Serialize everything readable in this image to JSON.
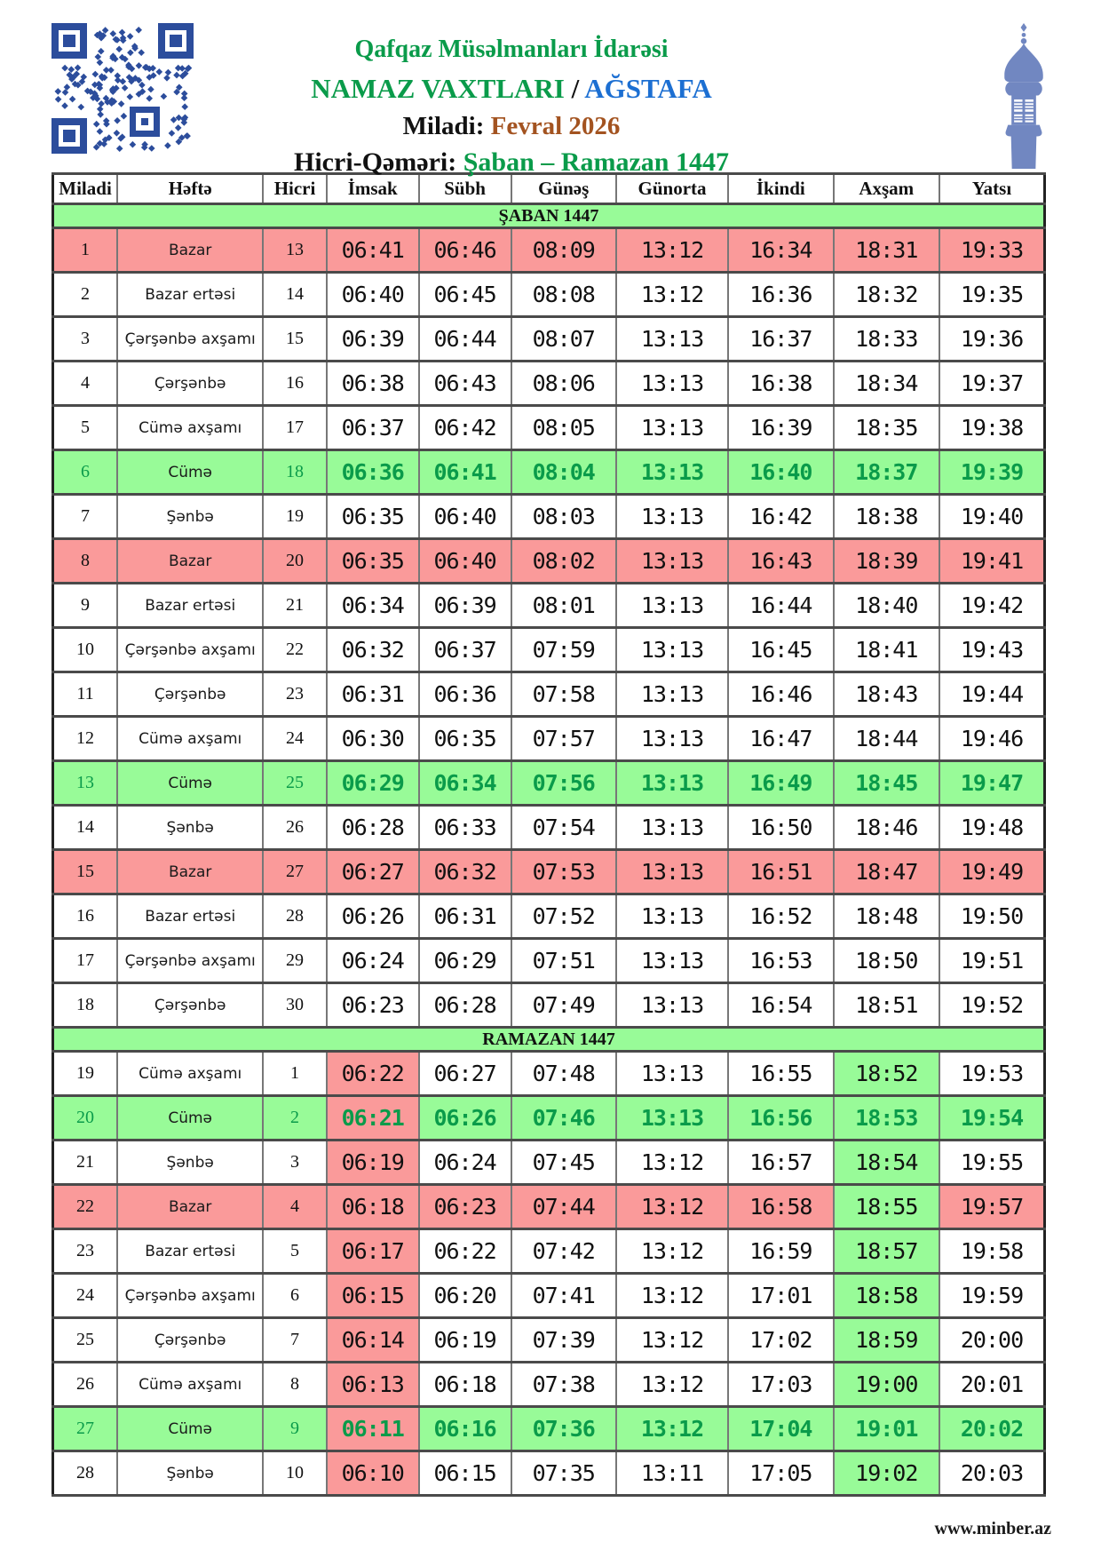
{
  "header": {
    "line1": "Qafqaz Müsəlmanları İdarəsi",
    "line2_part1": "NAMAZ VAXTLARI",
    "line2_sep": " / ",
    "line2_part2": "AĞSTAFA",
    "line3_label": "Miladi: ",
    "line3_value": "Fevral 2026",
    "line4_label": "Hicri-Qəməri: ",
    "line4_value": "Şaban – Ramazan 1447",
    "icons": {
      "left": "qr-code",
      "right": "minaret"
    }
  },
  "colors": {
    "green_text": "#0a9b4a",
    "blue_text": "#1c6fd2",
    "brown_text": "#a35320",
    "row_red": "#fa9a9a",
    "row_green": "#98fb98",
    "qr_blue": "#2c4d9c",
    "minaret_blue": "#7187c1"
  },
  "table": {
    "columns": [
      "Miladi",
      "Həftə",
      "Hicri",
      "İmsak",
      "Sübh",
      "Günəş",
      "Günorta",
      "İkindi",
      "Axşam",
      "Yatsı"
    ],
    "time_keys": [
      "imsak",
      "subh",
      "gunes",
      "gunorta",
      "ikindi",
      "axsam",
      "yatsi"
    ],
    "sections": [
      {
        "title": "ŞABAN 1447",
        "imsak_red": false,
        "axsam_green": false,
        "rows": [
          {
            "miladi": "1",
            "hefte": "Bazar",
            "hicri": "13",
            "times": [
              "06:41",
              "06:46",
              "08:09",
              "13:12",
              "16:34",
              "18:31",
              "19:33"
            ],
            "highlight": "red"
          },
          {
            "miladi": "2",
            "hefte": "Bazar ertəsi",
            "hicri": "14",
            "times": [
              "06:40",
              "06:45",
              "08:08",
              "13:12",
              "16:36",
              "18:32",
              "19:35"
            ],
            "highlight": null
          },
          {
            "miladi": "3",
            "hefte": "Çərşənbə axşamı",
            "hicri": "15",
            "times": [
              "06:39",
              "06:44",
              "08:07",
              "13:13",
              "16:37",
              "18:33",
              "19:36"
            ],
            "highlight": null
          },
          {
            "miladi": "4",
            "hefte": "Çərşənbə",
            "hicri": "16",
            "times": [
              "06:38",
              "06:43",
              "08:06",
              "13:13",
              "16:38",
              "18:34",
              "19:37"
            ],
            "highlight": null
          },
          {
            "miladi": "5",
            "hefte": "Cümə axşamı",
            "hicri": "17",
            "times": [
              "06:37",
              "06:42",
              "08:05",
              "13:13",
              "16:39",
              "18:35",
              "19:38"
            ],
            "highlight": null
          },
          {
            "miladi": "6",
            "hefte": "Cümə",
            "hicri": "18",
            "times": [
              "06:36",
              "06:41",
              "08:04",
              "13:13",
              "16:40",
              "18:37",
              "19:39"
            ],
            "highlight": "green"
          },
          {
            "miladi": "7",
            "hefte": "Şənbə",
            "hicri": "19",
            "times": [
              "06:35",
              "06:40",
              "08:03",
              "13:13",
              "16:42",
              "18:38",
              "19:40"
            ],
            "highlight": null
          },
          {
            "miladi": "8",
            "hefte": "Bazar",
            "hicri": "20",
            "times": [
              "06:35",
              "06:40",
              "08:02",
              "13:13",
              "16:43",
              "18:39",
              "19:41"
            ],
            "highlight": "red"
          },
          {
            "miladi": "9",
            "hefte": "Bazar ertəsi",
            "hicri": "21",
            "times": [
              "06:34",
              "06:39",
              "08:01",
              "13:13",
              "16:44",
              "18:40",
              "19:42"
            ],
            "highlight": null
          },
          {
            "miladi": "10",
            "hefte": "Çərşənbə axşamı",
            "hicri": "22",
            "times": [
              "06:32",
              "06:37",
              "07:59",
              "13:13",
              "16:45",
              "18:41",
              "19:43"
            ],
            "highlight": null
          },
          {
            "miladi": "11",
            "hefte": "Çərşənbə",
            "hicri": "23",
            "times": [
              "06:31",
              "06:36",
              "07:58",
              "13:13",
              "16:46",
              "18:43",
              "19:44"
            ],
            "highlight": null
          },
          {
            "miladi": "12",
            "hefte": "Cümə axşamı",
            "hicri": "24",
            "times": [
              "06:30",
              "06:35",
              "07:57",
              "13:13",
              "16:47",
              "18:44",
              "19:46"
            ],
            "highlight": null
          },
          {
            "miladi": "13",
            "hefte": "Cümə",
            "hicri": "25",
            "times": [
              "06:29",
              "06:34",
              "07:56",
              "13:13",
              "16:49",
              "18:45",
              "19:47"
            ],
            "highlight": "green"
          },
          {
            "miladi": "14",
            "hefte": "Şənbə",
            "hicri": "26",
            "times": [
              "06:28",
              "06:33",
              "07:54",
              "13:13",
              "16:50",
              "18:46",
              "19:48"
            ],
            "highlight": null
          },
          {
            "miladi": "15",
            "hefte": "Bazar",
            "hicri": "27",
            "times": [
              "06:27",
              "06:32",
              "07:53",
              "13:13",
              "16:51",
              "18:47",
              "19:49"
            ],
            "highlight": "red"
          },
          {
            "miladi": "16",
            "hefte": "Bazar ertəsi",
            "hicri": "28",
            "times": [
              "06:26",
              "06:31",
              "07:52",
              "13:13",
              "16:52",
              "18:48",
              "19:50"
            ],
            "highlight": null
          },
          {
            "miladi": "17",
            "hefte": "Çərşənbə axşamı",
            "hicri": "29",
            "times": [
              "06:24",
              "06:29",
              "07:51",
              "13:13",
              "16:53",
              "18:50",
              "19:51"
            ],
            "highlight": null
          },
          {
            "miladi": "18",
            "hefte": "Çərşənbə",
            "hicri": "30",
            "times": [
              "06:23",
              "06:28",
              "07:49",
              "13:13",
              "16:54",
              "18:51",
              "19:52"
            ],
            "highlight": null
          }
        ]
      },
      {
        "title": "RAMAZAN 1447",
        "imsak_red": true,
        "axsam_green": true,
        "rows": [
          {
            "miladi": "19",
            "hefte": "Cümə axşamı",
            "hicri": "1",
            "times": [
              "06:22",
              "06:27",
              "07:48",
              "13:13",
              "16:55",
              "18:52",
              "19:53"
            ],
            "highlight": null
          },
          {
            "miladi": "20",
            "hefte": "Cümə",
            "hicri": "2",
            "times": [
              "06:21",
              "06:26",
              "07:46",
              "13:13",
              "16:56",
              "18:53",
              "19:54"
            ],
            "highlight": "green"
          },
          {
            "miladi": "21",
            "hefte": "Şənbə",
            "hicri": "3",
            "times": [
              "06:19",
              "06:24",
              "07:45",
              "13:12",
              "16:57",
              "18:54",
              "19:55"
            ],
            "highlight": null
          },
          {
            "miladi": "22",
            "hefte": "Bazar",
            "hicri": "4",
            "times": [
              "06:18",
              "06:23",
              "07:44",
              "13:12",
              "16:58",
              "18:55",
              "19:57"
            ],
            "highlight": "red"
          },
          {
            "miladi": "23",
            "hefte": "Bazar ertəsi",
            "hicri": "5",
            "times": [
              "06:17",
              "06:22",
              "07:42",
              "13:12",
              "16:59",
              "18:57",
              "19:58"
            ],
            "highlight": null
          },
          {
            "miladi": "24",
            "hefte": "Çərşənbə axşamı",
            "hicri": "6",
            "times": [
              "06:15",
              "06:20",
              "07:41",
              "13:12",
              "17:01",
              "18:58",
              "19:59"
            ],
            "highlight": null
          },
          {
            "miladi": "25",
            "hefte": "Çərşənbə",
            "hicri": "7",
            "times": [
              "06:14",
              "06:19",
              "07:39",
              "13:12",
              "17:02",
              "18:59",
              "20:00"
            ],
            "highlight": null
          },
          {
            "miladi": "26",
            "hefte": "Cümə axşamı",
            "hicri": "8",
            "times": [
              "06:13",
              "06:18",
              "07:38",
              "13:12",
              "17:03",
              "19:00",
              "20:01"
            ],
            "highlight": null
          },
          {
            "miladi": "27",
            "hefte": "Cümə",
            "hicri": "9",
            "times": [
              "06:11",
              "06:16",
              "07:36",
              "13:12",
              "17:04",
              "19:01",
              "20:02"
            ],
            "highlight": "green"
          },
          {
            "miladi": "28",
            "hefte": "Şənbə",
            "hicri": "10",
            "times": [
              "06:10",
              "06:15",
              "07:35",
              "13:11",
              "17:05",
              "19:02",
              "20:03"
            ],
            "highlight": null
          }
        ]
      }
    ]
  },
  "footer": {
    "site": "www.minber.az"
  }
}
